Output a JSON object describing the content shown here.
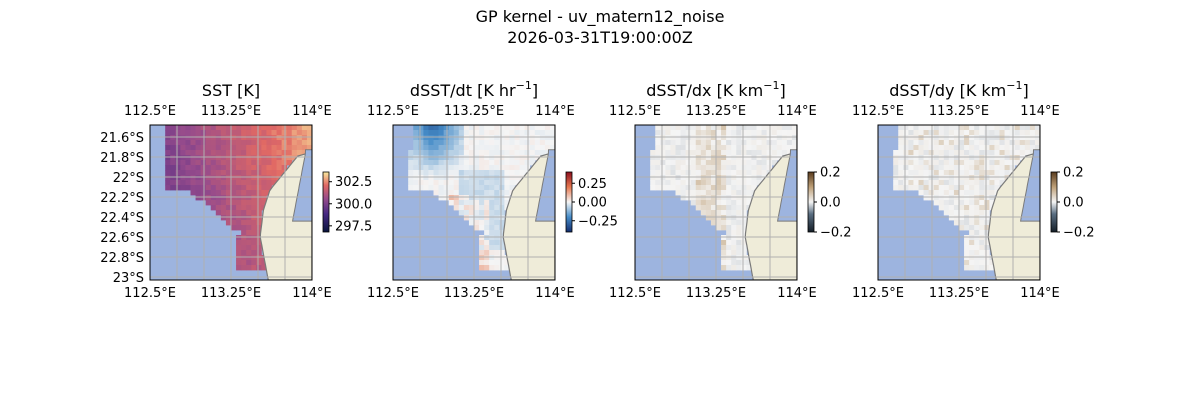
{
  "figure": {
    "title": "GP kernel - uv_matern12_noise",
    "subtitle": "2026-03-31T19:00:00Z"
  },
  "colors": {
    "ocean_mask": "#9db4df",
    "land": "#efecd9",
    "coast": "#7a7a7a",
    "grid": "#b0b0b0"
  },
  "chart_data": [
    {
      "type": "heatmap",
      "title": "SST [K]",
      "lon_ticks": [
        "112.5°E",
        "113.25°E",
        "114°E"
      ],
      "lat_ticks": [
        "21.6°S",
        "21.8°S",
        "22°S",
        "22.2°S",
        "22.4°S",
        "22.6°S",
        "22.8°S",
        "23°S"
      ],
      "show_lat_labels": true,
      "colormap": "thermal",
      "colorbar": {
        "ticks": [
          "302.5",
          "300.0",
          "297.5"
        ],
        "tick_values": [
          302.5,
          300.0,
          297.5
        ],
        "range": [
          296.8,
          303.6
        ]
      },
      "grid": true
    },
    {
      "type": "heatmap",
      "title_base": "dSST/dt [K hr",
      "title_sup": "−1",
      "title_end": "]",
      "lon_ticks": [
        "112.5°E",
        "113.25°E",
        "114°E"
      ],
      "show_lat_labels": false,
      "colormap": "diverging-rdbu",
      "colorbar": {
        "ticks": [
          "0.25",
          "0.00",
          "−0.25"
        ],
        "tick_values": [
          0.25,
          0.0,
          -0.25
        ],
        "range": [
          -0.4,
          0.4
        ]
      },
      "grid": true
    },
    {
      "type": "heatmap",
      "title_base": "dSST/dx [K km",
      "title_sup": "−1",
      "title_end": "]",
      "lon_ticks": [
        "112.5°E",
        "113.25°E",
        "114°E"
      ],
      "show_lat_labels": false,
      "colormap": "diverging-brown",
      "colorbar": {
        "ticks": [
          "0.2",
          "0.0",
          "−0.2"
        ],
        "tick_values": [
          0.2,
          0.0,
          -0.2
        ],
        "range": [
          -0.2,
          0.2
        ]
      },
      "grid": true
    },
    {
      "type": "heatmap",
      "title_base": "dSST/dy [K km",
      "title_sup": "−1",
      "title_end": "]",
      "lon_ticks": [
        "112.5°E",
        "113.25°E",
        "114°E"
      ],
      "show_lat_labels": false,
      "colormap": "diverging-brown",
      "colorbar": {
        "ticks": [
          "0.2",
          "0.0",
          "−0.2"
        ],
        "tick_values": [
          0.2,
          0.0,
          -0.2
        ],
        "range": [
          -0.2,
          0.2
        ]
      },
      "grid": true
    }
  ]
}
